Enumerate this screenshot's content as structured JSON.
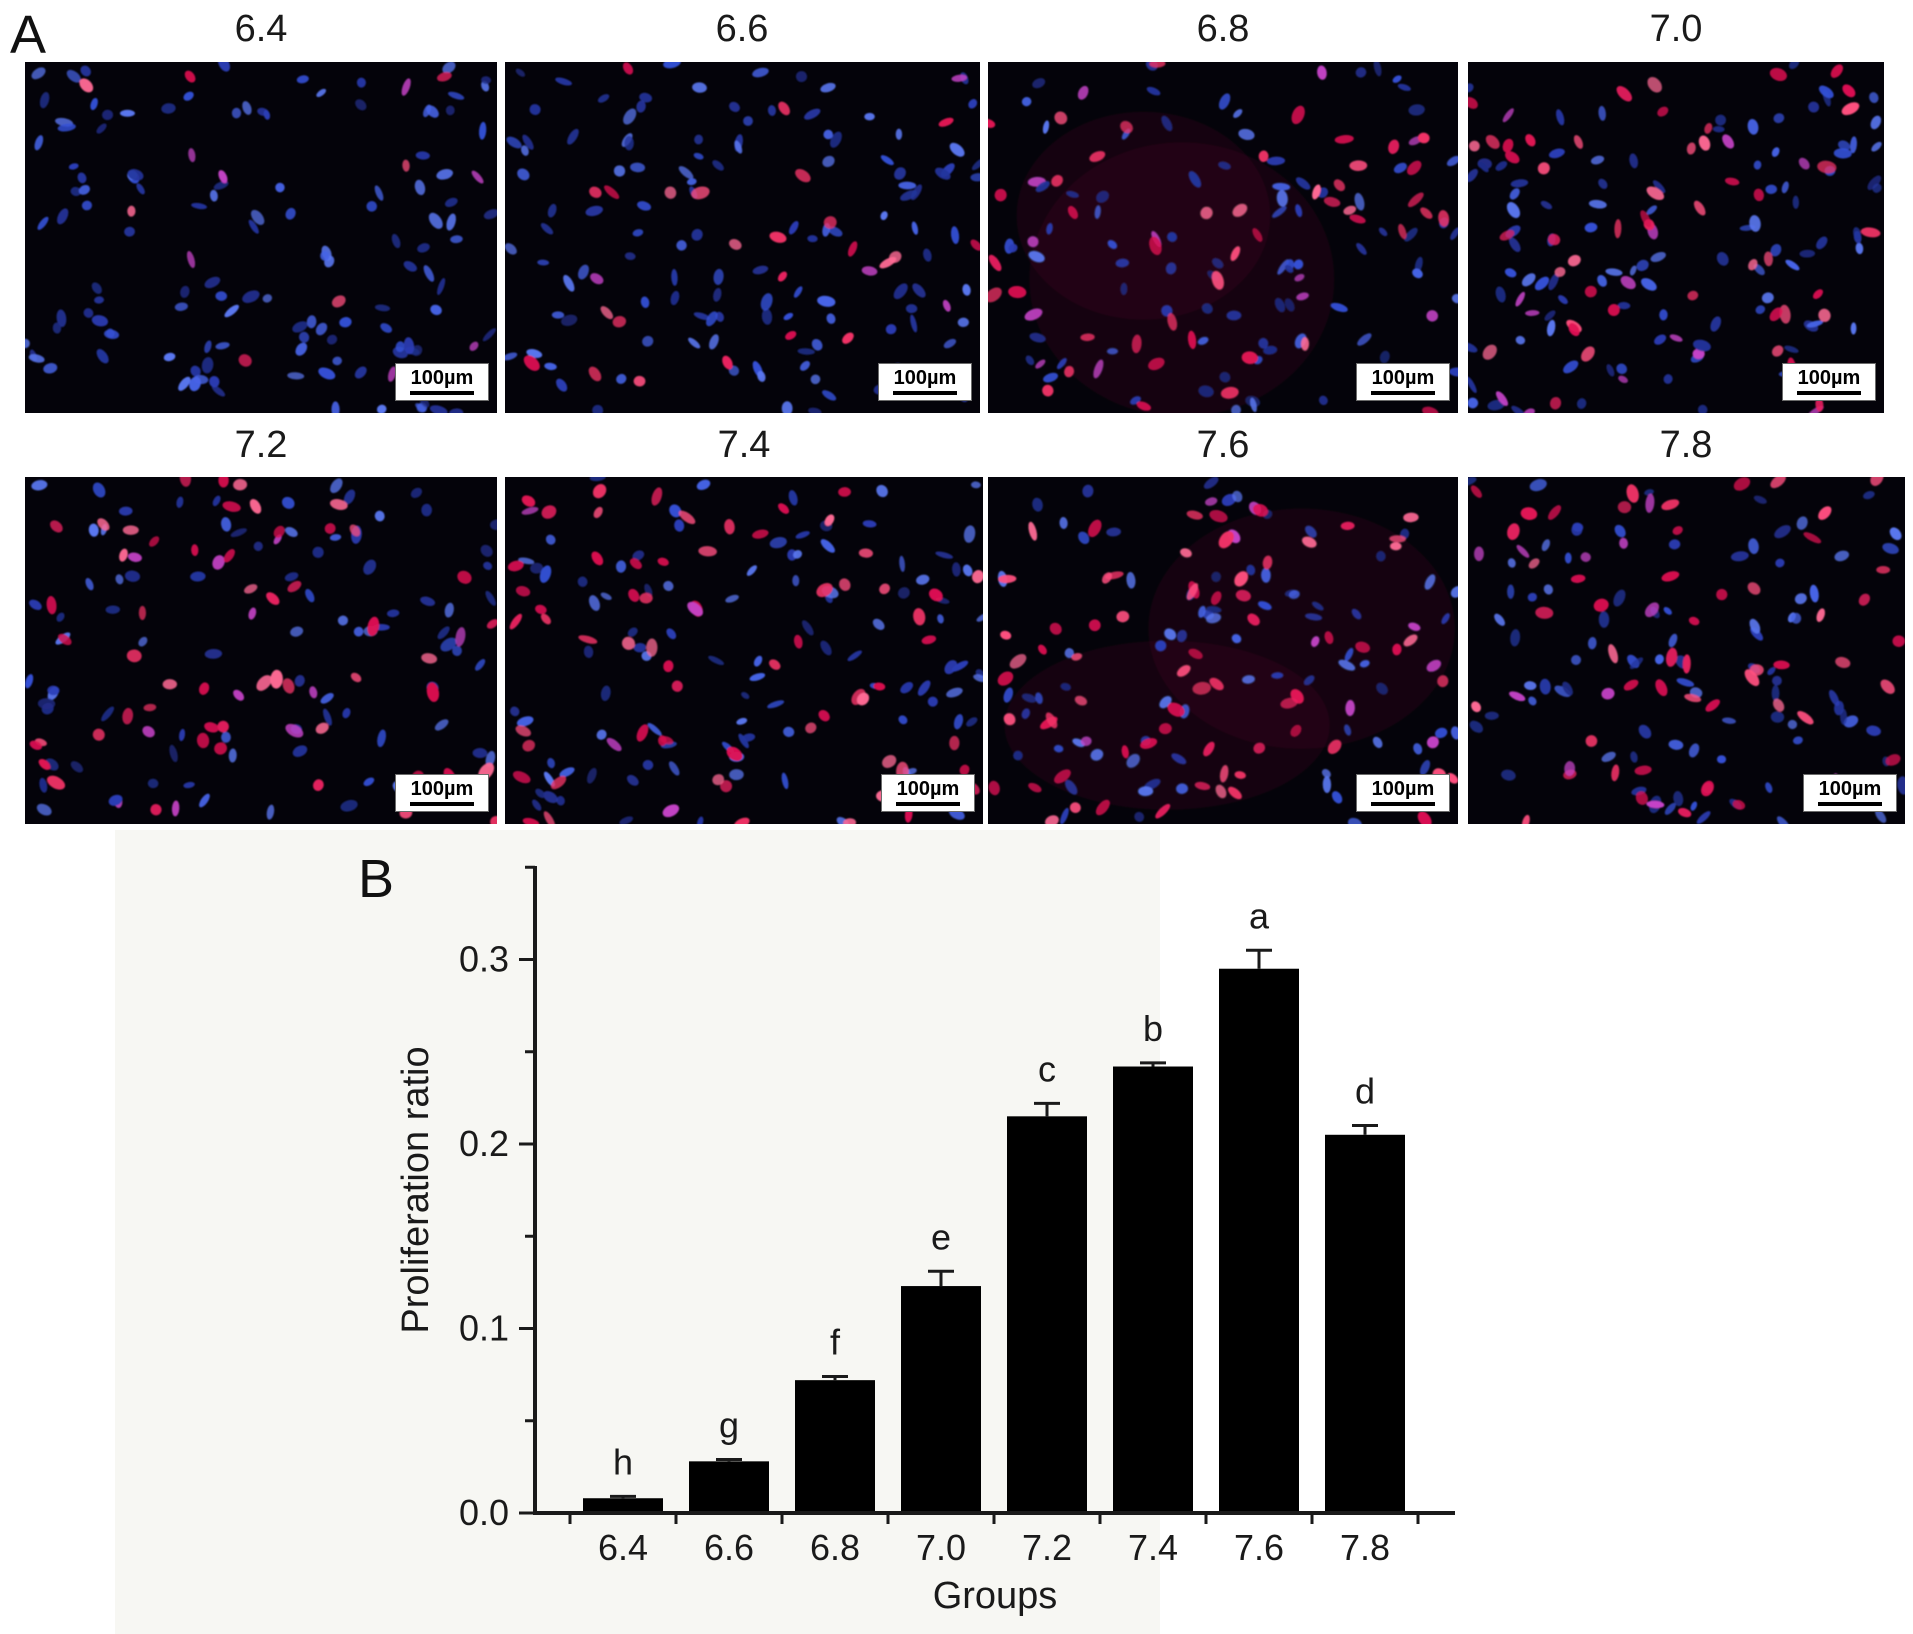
{
  "figure": {
    "panel_a_label": "A",
    "panel_b_label": "B"
  },
  "panel_a": {
    "panels": [
      {
        "label": "6.4",
        "scale_bar": "100µm",
        "blue_cells": 135,
        "red_cells": 7,
        "haze": false
      },
      {
        "label": "6.6",
        "scale_bar": "100µm",
        "blue_cells": 120,
        "red_cells": 26,
        "haze": false
      },
      {
        "label": "6.8",
        "scale_bar": "100µm",
        "blue_cells": 90,
        "red_cells": 48,
        "haze": true
      },
      {
        "label": "7.0",
        "scale_bar": "100µm",
        "blue_cells": 105,
        "red_cells": 52,
        "haze": false
      },
      {
        "label": "7.2",
        "scale_bar": "100µm",
        "blue_cells": 88,
        "red_cells": 58,
        "haze": false
      },
      {
        "label": "7.4",
        "scale_bar": "100µm",
        "blue_cells": 100,
        "red_cells": 66,
        "haze": false
      },
      {
        "label": "7.6",
        "scale_bar": "100µm",
        "blue_cells": 80,
        "red_cells": 72,
        "haze": true
      },
      {
        "label": "7.8",
        "scale_bar": "100µm",
        "blue_cells": 92,
        "red_cells": 55,
        "haze": false
      }
    ],
    "stain_colors": {
      "nucleus_blue": [
        "#2b3db6",
        "#3450d6",
        "#24349c",
        "#4663e6",
        "#5a77f0",
        "#1f2c86"
      ],
      "proliferating_red": [
        "#e01254",
        "#f03366",
        "#ff4f7f",
        "#d60e4e",
        "#ff6a95",
        "#e8205f"
      ],
      "overlap_magenta": "#c543c7",
      "background": "#04030a"
    }
  },
  "chart_data": {
    "type": "bar",
    "title": "",
    "xlabel": "Groups",
    "ylabel": "Proliferation ratio",
    "categories": [
      "6.4",
      "6.6",
      "6.8",
      "7.0",
      "7.2",
      "7.4",
      "7.6",
      "7.8"
    ],
    "values": [
      0.008,
      0.028,
      0.072,
      0.123,
      0.215,
      0.242,
      0.295,
      0.205
    ],
    "errors": [
      0.001,
      0.001,
      0.002,
      0.008,
      0.007,
      0.002,
      0.01,
      0.005
    ],
    "sig_letters": [
      "h",
      "g",
      "f",
      "e",
      "c",
      "b",
      "a",
      "d"
    ],
    "ylim": [
      0,
      0.35
    ],
    "yticks": [
      0.0,
      0.1,
      0.2,
      0.3
    ],
    "minor_yticks": [
      0.05,
      0.15,
      0.25,
      0.35
    ],
    "bar_color": "#000000",
    "axis_color": "#1a1a1a",
    "grid": false,
    "legend": null
  }
}
